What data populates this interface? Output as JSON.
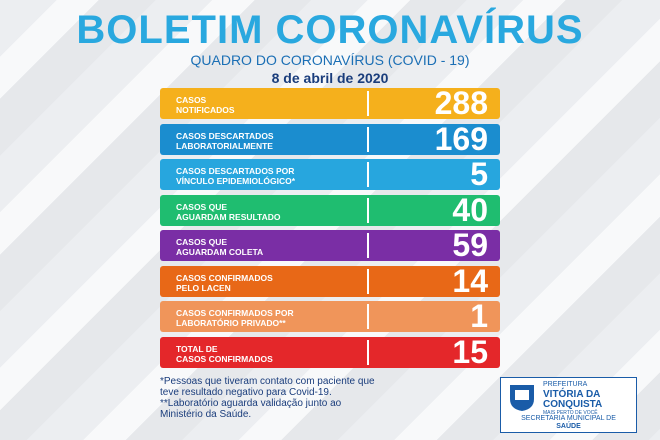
{
  "header": {
    "title": "BOLETIM CORONAVÍRUS",
    "subtitle": "QUADRO DO CORONAVÍRUS (COVID - 19)",
    "date": "8 de abril de 2020"
  },
  "rows": [
    {
      "label": [
        "CASOS",
        "NOTIFICADOS"
      ],
      "value": 288,
      "color": "#f5b01c"
    },
    {
      "label": [
        "CASOS DESCARTADOS",
        "LABORATORIALMENTE"
      ],
      "value": 169,
      "color": "#1b8dcf"
    },
    {
      "label": [
        "CASOS DESCARTADOS POR",
        "VÍNCULO EPIDEMIOLÓGICO*"
      ],
      "value": 5,
      "color": "#27a6de"
    },
    {
      "label": [
        "CASOS QUE",
        "AGUARDAM RESULTADO"
      ],
      "value": 40,
      "color": "#1fbd70"
    },
    {
      "label": [
        "CASOS QUE",
        "AGUARDAM COLETA"
      ],
      "value": 59,
      "color": "#7a2ea5"
    },
    {
      "label": [
        "CASOS CONFIRMADOS",
        "PELO LACEN"
      ],
      "value": 14,
      "color": "#e86817"
    },
    {
      "label": [
        "CASOS CONFIRMADOS POR",
        "LABORATÓRIO PRIVADO**"
      ],
      "value": 1,
      "color": "#f0955a"
    },
    {
      "label": [
        "TOTAL DE",
        "CASOS CONFIRMADOS"
      ],
      "value": 15,
      "color": "#e4272a"
    }
  ],
  "notes": [
    "*Pessoas que tiveram contato com paciente que",
    "teve resultado negativo para Covid-19.",
    "**Laboratório aguarda validação junto ao",
    "Ministério da Saúde."
  ],
  "logo": {
    "top": "PREFEITURA",
    "name": [
      "VITÓRIA DA",
      "CONQUISTA"
    ],
    "slogan": "MAIS PERTO DE VOCÊ",
    "dept": [
      "SECRETARIA MUNICIPAL DE",
      "SAÚDE"
    ]
  }
}
